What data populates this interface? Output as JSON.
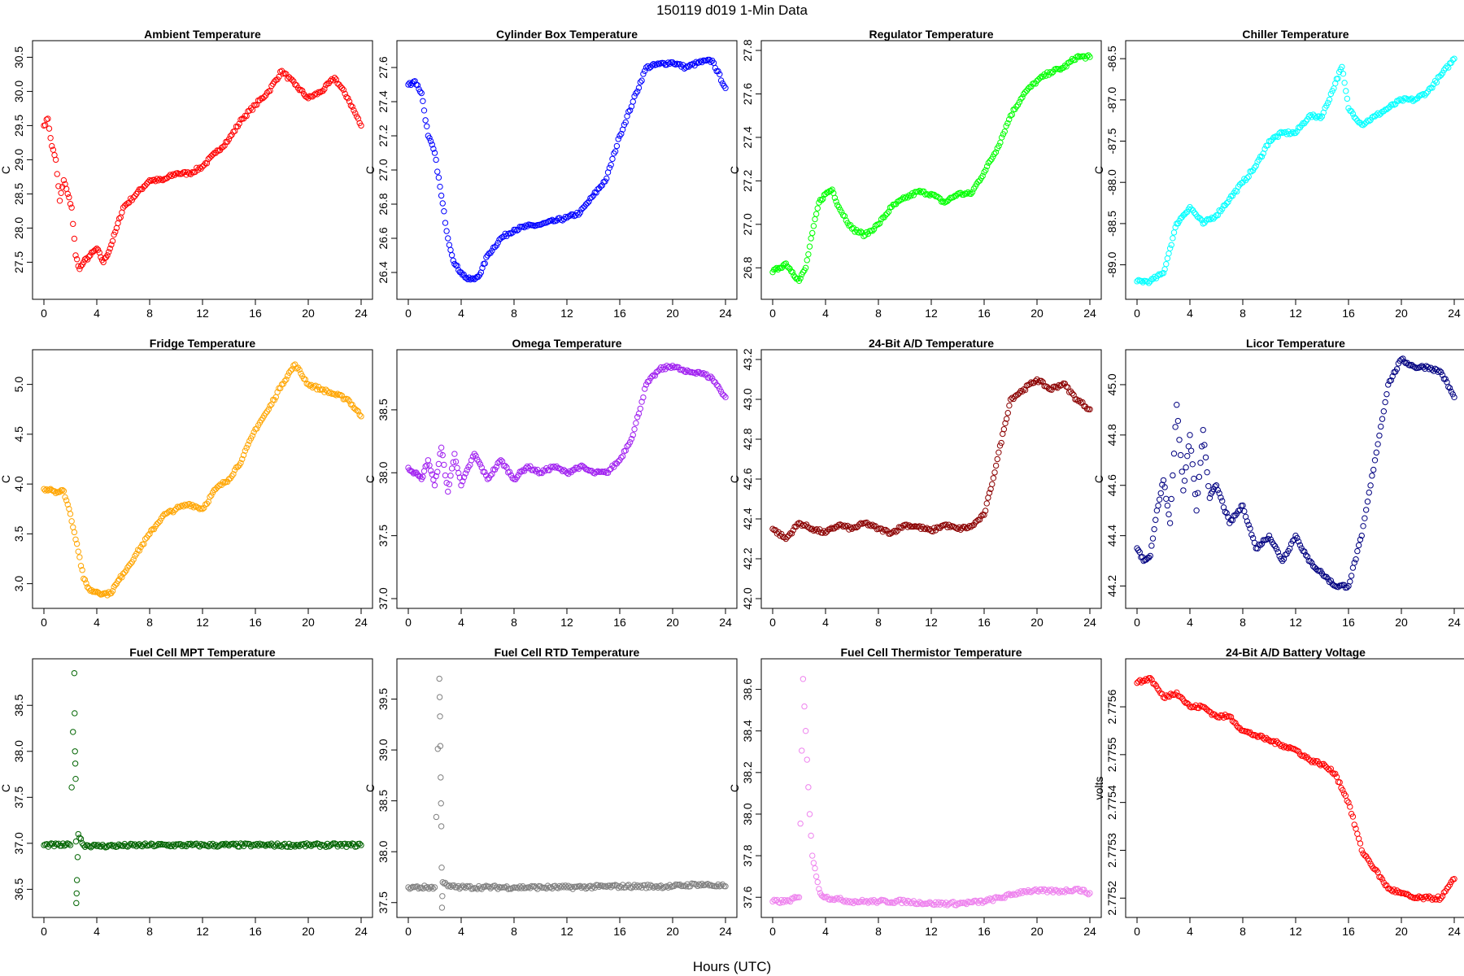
{
  "figure": {
    "title": "150119   d019   1-Min Data",
    "xlabel": "Hours (UTC)"
  },
  "chart_data": [
    {
      "type": "scatter",
      "title": "Ambient Temperature",
      "ylabel": "C",
      "color": "#ff0000",
      "xlim": [
        0,
        24
      ],
      "ylim": [
        27.1,
        30.6
      ],
      "xticks": [
        0,
        4,
        8,
        12,
        16,
        20,
        24
      ],
      "xtick_labels": [
        "0",
        "4",
        "8",
        "12",
        "16",
        "20",
        "24"
      ],
      "yticks": [
        27.5,
        28.0,
        28.5,
        29.0,
        29.5,
        30.0,
        30.5
      ],
      "ytick_labels": [
        "27.5",
        "28.0",
        "28.5",
        "29.0",
        "29.5",
        "30.0",
        "30.5"
      ],
      "x": [
        0,
        0.3,
        0.6,
        0.9,
        1.2,
        1.5,
        1.8,
        2.1,
        2.4,
        2.7,
        3.0,
        3.5,
        4.0,
        4.5,
        5.0,
        5.5,
        6,
        7,
        8,
        9,
        10,
        11,
        12,
        13,
        14,
        15,
        16,
        17,
        18,
        19,
        20,
        21,
        22,
        23,
        24
      ],
      "y": [
        29.5,
        29.6,
        29.2,
        29.0,
        28.4,
        28.7,
        28.5,
        28.3,
        27.6,
        27.4,
        27.5,
        27.6,
        27.7,
        27.5,
        27.7,
        28.0,
        28.3,
        28.5,
        28.7,
        28.7,
        28.8,
        28.8,
        28.9,
        29.1,
        29.3,
        29.6,
        29.8,
        30.0,
        30.3,
        30.1,
        29.9,
        30.0,
        30.2,
        29.9,
        29.5
      ]
    },
    {
      "type": "scatter",
      "title": "Cylinder Box Temperature",
      "ylabel": "C",
      "color": "#0000ff",
      "xlim": [
        0,
        24
      ],
      "ylim": [
        26.3,
        27.7
      ],
      "xticks": [
        0,
        4,
        8,
        12,
        16,
        20,
        24
      ],
      "xtick_labels": [
        "0",
        "4",
        "8",
        "12",
        "16",
        "20",
        "24"
      ],
      "yticks": [
        26.4,
        26.6,
        26.8,
        27.0,
        27.2,
        27.4,
        27.6
      ],
      "ytick_labels": [
        "26.4",
        "26.6",
        "26.8",
        "27.0",
        "27.2",
        "27.4",
        "27.6"
      ],
      "x": [
        0,
        0.5,
        1,
        1.5,
        2,
        2.5,
        3,
        3.5,
        4,
        4.5,
        5,
        5.5,
        6,
        7,
        8,
        9,
        10,
        11,
        12,
        13,
        14,
        15,
        16,
        17,
        18,
        19,
        20,
        21,
        22,
        23,
        24
      ],
      "y": [
        27.5,
        27.52,
        27.45,
        27.2,
        27.1,
        26.85,
        26.6,
        26.45,
        26.4,
        26.36,
        26.36,
        26.4,
        26.5,
        26.6,
        26.65,
        26.67,
        26.68,
        26.7,
        26.72,
        26.75,
        26.85,
        26.95,
        27.2,
        27.4,
        27.6,
        27.62,
        27.63,
        27.6,
        27.63,
        27.64,
        27.48
      ]
    },
    {
      "type": "scatter",
      "title": "Regulator Temperature",
      "ylabel": "C",
      "color": "#00ff00",
      "xlim": [
        0,
        24
      ],
      "ylim": [
        26.7,
        27.8
      ],
      "xticks": [
        0,
        4,
        8,
        12,
        16,
        20,
        24
      ],
      "xtick_labels": [
        "0",
        "4",
        "8",
        "12",
        "16",
        "20",
        "24"
      ],
      "yticks": [
        26.8,
        27.0,
        27.2,
        27.4,
        27.6,
        27.8
      ],
      "ytick_labels": [
        "26.8",
        "27.0",
        "27.2",
        "27.4",
        "27.6",
        "27.8"
      ],
      "x": [
        0,
        0.5,
        1,
        1.5,
        2,
        2.5,
        3,
        3.5,
        4,
        4.5,
        5,
        6,
        7,
        8,
        9,
        10,
        11,
        12,
        13,
        14,
        15,
        16,
        17,
        18,
        19,
        20,
        21,
        22,
        23,
        24
      ],
      "y": [
        26.78,
        26.8,
        26.82,
        26.78,
        26.74,
        26.8,
        26.96,
        27.1,
        27.14,
        27.16,
        27.08,
        26.98,
        26.95,
        27.0,
        27.08,
        27.12,
        27.15,
        27.14,
        27.1,
        27.14,
        27.14,
        27.24,
        27.35,
        27.5,
        27.6,
        27.66,
        27.7,
        27.72,
        27.77,
        27.77
      ]
    },
    {
      "type": "scatter",
      "title": "Chiller Temperature",
      "ylabel": "C",
      "color": "#00ffff",
      "xlim": [
        0,
        24
      ],
      "ylim": [
        -89.3,
        -86.4
      ],
      "xticks": [
        0,
        4,
        8,
        12,
        16,
        20,
        24
      ],
      "xtick_labels": [
        "0",
        "4",
        "8",
        "12",
        "16",
        "20",
        "24"
      ],
      "yticks": [
        -89.0,
        -88.5,
        -88.0,
        -87.5,
        -87.0,
        -86.5
      ],
      "ytick_labels": [
        "-89.0",
        "-88.5",
        "-88.0",
        "-87.5",
        "-87.0",
        "-86.5"
      ],
      "x": [
        0,
        1,
        2,
        2.5,
        3,
        3.5,
        4,
        5,
        6,
        7,
        8,
        9,
        10,
        11,
        12,
        13,
        14,
        15,
        15.5,
        16,
        17,
        18,
        19,
        20,
        21,
        22,
        23,
        24
      ],
      "y": [
        -89.2,
        -89.2,
        -89.1,
        -88.8,
        -88.5,
        -88.4,
        -88.3,
        -88.5,
        -88.4,
        -88.2,
        -88.0,
        -87.8,
        -87.5,
        -87.4,
        -87.4,
        -87.2,
        -87.2,
        -86.8,
        -86.6,
        -87.1,
        -87.3,
        -87.2,
        -87.1,
        -87.0,
        -87.0,
        -86.9,
        -86.7,
        -86.5
      ]
    },
    {
      "type": "scatter",
      "title": "Fridge Temperature",
      "ylabel": "C",
      "color": "#ffa500",
      "xlim": [
        0,
        24
      ],
      "ylim": [
        2.85,
        5.25
      ],
      "xticks": [
        0,
        4,
        8,
        12,
        16,
        20,
        24
      ],
      "xtick_labels": [
        "0",
        "4",
        "8",
        "12",
        "16",
        "20",
        "24"
      ],
      "yticks": [
        3.0,
        3.5,
        4.0,
        4.5,
        5.0
      ],
      "ytick_labels": [
        "3.0",
        "3.5",
        "4.0",
        "4.5",
        "5.0"
      ],
      "x": [
        0,
        0.5,
        1,
        1.5,
        2,
        2.5,
        3,
        3.5,
        4,
        4.5,
        5,
        5.5,
        6,
        7,
        8,
        9,
        10,
        11,
        12,
        13,
        14,
        15,
        16,
        17,
        18,
        19,
        20,
        21,
        22,
        23,
        24
      ],
      "y": [
        3.95,
        3.95,
        3.92,
        3.93,
        3.7,
        3.4,
        3.05,
        2.93,
        2.92,
        2.9,
        2.9,
        3.0,
        3.1,
        3.3,
        3.5,
        3.68,
        3.75,
        3.8,
        3.75,
        3.95,
        4.05,
        4.25,
        4.55,
        4.75,
        5.0,
        5.2,
        5.0,
        4.95,
        4.9,
        4.85,
        4.68
      ]
    },
    {
      "type": "scatter",
      "title": "Omega Temperature",
      "ylabel": "C",
      "color": "#a020f0",
      "xlim": [
        0,
        24
      ],
      "ylim": [
        37.0,
        38.9
      ],
      "xticks": [
        0,
        4,
        8,
        12,
        16,
        20,
        24
      ],
      "xtick_labels": [
        "0",
        "4",
        "8",
        "12",
        "16",
        "20",
        "24"
      ],
      "yticks": [
        37.0,
        37.5,
        38.0,
        38.5
      ],
      "ytick_labels": [
        "37.0",
        "37.5",
        "38.0",
        "38.5"
      ],
      "x": [
        0,
        0.5,
        1,
        1.5,
        2,
        2.5,
        3,
        3.5,
        4,
        5,
        6,
        7,
        8,
        9,
        10,
        11,
        12,
        13,
        14,
        15,
        16,
        17,
        18,
        19,
        20,
        21,
        22,
        23,
        24
      ],
      "y": [
        38.04,
        38.0,
        37.95,
        38.1,
        37.9,
        38.2,
        37.85,
        38.15,
        37.9,
        38.15,
        37.95,
        38.1,
        37.95,
        38.05,
        38.0,
        38.05,
        38.0,
        38.05,
        38.0,
        38.0,
        38.1,
        38.3,
        38.7,
        38.82,
        38.85,
        38.8,
        38.8,
        38.75,
        38.6
      ]
    },
    {
      "type": "scatter",
      "title": "24-Bit A/D Temperature",
      "ylabel": "C",
      "color": "#8b0000",
      "xlim": [
        0,
        24
      ],
      "ylim": [
        42.0,
        43.2
      ],
      "xticks": [
        0,
        4,
        8,
        12,
        16,
        20,
        24
      ],
      "xtick_labels": [
        "0",
        "4",
        "8",
        "12",
        "16",
        "20",
        "24"
      ],
      "yticks": [
        42.0,
        42.2,
        42.4,
        42.6,
        42.8,
        43.0,
        43.2
      ],
      "ytick_labels": [
        "42.0",
        "42.2",
        "42.4",
        "42.6",
        "42.8",
        "43.0",
        "43.2"
      ],
      "x": [
        0,
        1,
        2,
        3,
        4,
        5,
        6,
        7,
        8,
        9,
        10,
        11,
        12,
        13,
        14,
        15,
        16,
        16.5,
        17,
        17.5,
        18,
        19,
        20,
        21,
        22,
        23,
        24
      ],
      "y": [
        42.35,
        42.3,
        42.38,
        42.35,
        42.33,
        42.37,
        42.35,
        42.38,
        42.35,
        42.33,
        42.37,
        42.36,
        42.34,
        42.37,
        42.35,
        42.36,
        42.42,
        42.55,
        42.7,
        42.85,
        43.0,
        43.05,
        43.1,
        43.05,
        43.08,
        43.0,
        42.95
      ]
    },
    {
      "type": "scatter",
      "title": "Licor Temperature",
      "ylabel": "C",
      "color": "#000080",
      "xlim": [
        0,
        24
      ],
      "ylim": [
        44.15,
        45.1
      ],
      "xticks": [
        0,
        4,
        8,
        12,
        16,
        20,
        24
      ],
      "xtick_labels": [
        "0",
        "4",
        "8",
        "12",
        "16",
        "20",
        "24"
      ],
      "yticks": [
        44.2,
        44.4,
        44.6,
        44.8,
        45.0
      ],
      "ytick_labels": [
        "44.2",
        "44.4",
        "44.6",
        "44.8",
        "45.0"
      ],
      "x": [
        0,
        0.5,
        1,
        1.5,
        2,
        2.5,
        3,
        3.5,
        4,
        4.5,
        5,
        5.5,
        6,
        7,
        8,
        9,
        10,
        11,
        12,
        13,
        14,
        15,
        16,
        17,
        18,
        19,
        20,
        21,
        22,
        23,
        24
      ],
      "y": [
        44.35,
        44.3,
        44.32,
        44.5,
        44.62,
        44.45,
        44.92,
        44.58,
        44.8,
        44.5,
        44.82,
        44.55,
        44.6,
        44.45,
        44.52,
        44.35,
        44.4,
        44.3,
        44.4,
        44.3,
        44.25,
        44.2,
        44.2,
        44.4,
        44.7,
        45.0,
        45.1,
        45.07,
        45.07,
        45.05,
        44.95
      ]
    },
    {
      "type": "scatter",
      "title": "Fuel Cell MPT Temperature",
      "ylabel": "C",
      "color": "#006400",
      "xlim": [
        0,
        24
      ],
      "ylim": [
        36.3,
        38.9
      ],
      "xticks": [
        0,
        4,
        8,
        12,
        16,
        20,
        24
      ],
      "xtick_labels": [
        "0",
        "4",
        "8",
        "12",
        "16",
        "20",
        "24"
      ],
      "yticks": [
        36.5,
        37.0,
        37.5,
        38.0,
        38.5
      ],
      "ytick_labels": [
        "36.5",
        "37.0",
        "37.5",
        "38.0",
        "38.5"
      ],
      "x": [
        0,
        2,
        2.3,
        2.35,
        2.4,
        2.45,
        2.5,
        2.6,
        3,
        4,
        8,
        12,
        16,
        20,
        24
      ],
      "y": [
        36.98,
        36.98,
        38.85,
        38.0,
        37.7,
        36.35,
        36.6,
        37.1,
        36.98,
        36.97,
        36.98,
        36.98,
        36.98,
        36.98,
        36.98
      ]
    },
    {
      "type": "scatter",
      "title": "Fuel Cell RTD Temperature",
      "ylabel": "C",
      "color": "#808080",
      "xlim": [
        0,
        24
      ],
      "ylim": [
        37.45,
        39.8
      ],
      "xticks": [
        0,
        4,
        8,
        12,
        16,
        20,
        24
      ],
      "xtick_labels": [
        "0",
        "4",
        "8",
        "12",
        "16",
        "20",
        "24"
      ],
      "yticks": [
        37.5,
        38.0,
        38.5,
        39.0,
        39.5
      ],
      "ytick_labels": [
        "37.5",
        "38.0",
        "38.5",
        "39.0",
        "39.5"
      ],
      "x": [
        0,
        2,
        2.35,
        2.4,
        2.45,
        2.5,
        2.55,
        2.6,
        3,
        4,
        8,
        12,
        16,
        20,
        22,
        24
      ],
      "y": [
        37.65,
        37.65,
        39.7,
        39.33,
        38.73,
        38.25,
        37.45,
        37.7,
        37.66,
        37.65,
        37.65,
        37.65,
        37.66,
        37.66,
        37.68,
        37.66
      ]
    },
    {
      "type": "scatter",
      "title": "Fuel Cell Thermistor Temperature",
      "ylabel": "C",
      "color": "#ee82ee",
      "xlim": [
        0,
        24
      ],
      "ylim": [
        37.55,
        38.7
      ],
      "xticks": [
        0,
        4,
        8,
        12,
        16,
        20,
        24
      ],
      "xtick_labels": [
        "0",
        "4",
        "8",
        "12",
        "16",
        "20",
        "24"
      ],
      "yticks": [
        37.6,
        37.8,
        38.0,
        38.2,
        38.4,
        38.6
      ],
      "ytick_labels": [
        "37.6",
        "37.8",
        "38.0",
        "38.2",
        "38.4",
        "38.6"
      ],
      "x": [
        0,
        1,
        2,
        2.3,
        2.5,
        2.8,
        3,
        3.3,
        3.6,
        4,
        5,
        6,
        7,
        8,
        10,
        12,
        14,
        16,
        18,
        19,
        20,
        21,
        22,
        23,
        24
      ],
      "y": [
        37.58,
        37.58,
        37.6,
        38.65,
        38.4,
        38.0,
        37.8,
        37.7,
        37.62,
        37.6,
        37.59,
        37.58,
        37.58,
        37.58,
        37.58,
        37.57,
        37.57,
        37.58,
        37.61,
        37.63,
        37.63,
        37.63,
        37.63,
        37.64,
        37.62
      ]
    },
    {
      "type": "scatter",
      "title": "24-Bit A/D Battery Voltage",
      "ylabel": "volts",
      "color": "#ff0000",
      "xlim": [
        0,
        24
      ],
      "ylim": [
        2.77518,
        2.77568
      ],
      "xticks": [
        0,
        4,
        8,
        12,
        16,
        20,
        24
      ],
      "xtick_labels": [
        "0",
        "4",
        "8",
        "12",
        "16",
        "20",
        "24"
      ],
      "yticks": [
        2.7752,
        2.7753,
        2.7754,
        2.7755,
        2.7756
      ],
      "ytick_labels": [
        "2.7752",
        "2.7753",
        "2.7754",
        "2.7755",
        "2.7756"
      ],
      "x": [
        0,
        1,
        2,
        3,
        4,
        5,
        6,
        7,
        8,
        9,
        10,
        11,
        12,
        13,
        14,
        15,
        16,
        17,
        18,
        19,
        20,
        21,
        22,
        23,
        24
      ],
      "y": [
        2.77565,
        2.77566,
        2.77562,
        2.77563,
        2.7756,
        2.7756,
        2.77558,
        2.77558,
        2.77555,
        2.77554,
        2.77553,
        2.77552,
        2.77551,
        2.77549,
        2.77548,
        2.77546,
        2.7754,
        2.7753,
        2.77526,
        2.77522,
        2.77521,
        2.7752,
        2.7752,
        2.7752,
        2.77524
      ]
    }
  ]
}
